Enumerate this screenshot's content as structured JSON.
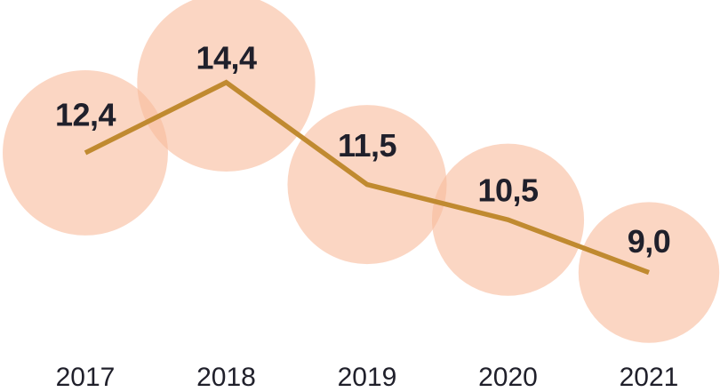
{
  "chart_data": {
    "type": "line",
    "subtype": "bubble-line-trend",
    "title": "",
    "xlabel": "",
    "ylabel": "",
    "legend_position": "none",
    "grid": false,
    "axes_visible": false,
    "categories": [
      "2017",
      "2018",
      "2019",
      "2020",
      "2021"
    ],
    "series": [
      {
        "name": "value",
        "values": [
          12.4,
          14.4,
          11.5,
          10.5,
          9.0
        ],
        "value_labels": [
          "12,4",
          "14,4",
          "11,5",
          "10,5",
          "9,0"
        ]
      }
    ],
    "decimal_separator": "comma",
    "bubble_sizing": "area-proportional-to-value",
    "value_range_hint": [
      9.0,
      14.4
    ],
    "colors": {
      "bubble_fill": "#F8BA9B",
      "bubble_opacity": 0.6,
      "line": "#C08A30",
      "value_label": "#20202B",
      "year_label": "#20202B",
      "background": "#FFFFFF"
    }
  }
}
